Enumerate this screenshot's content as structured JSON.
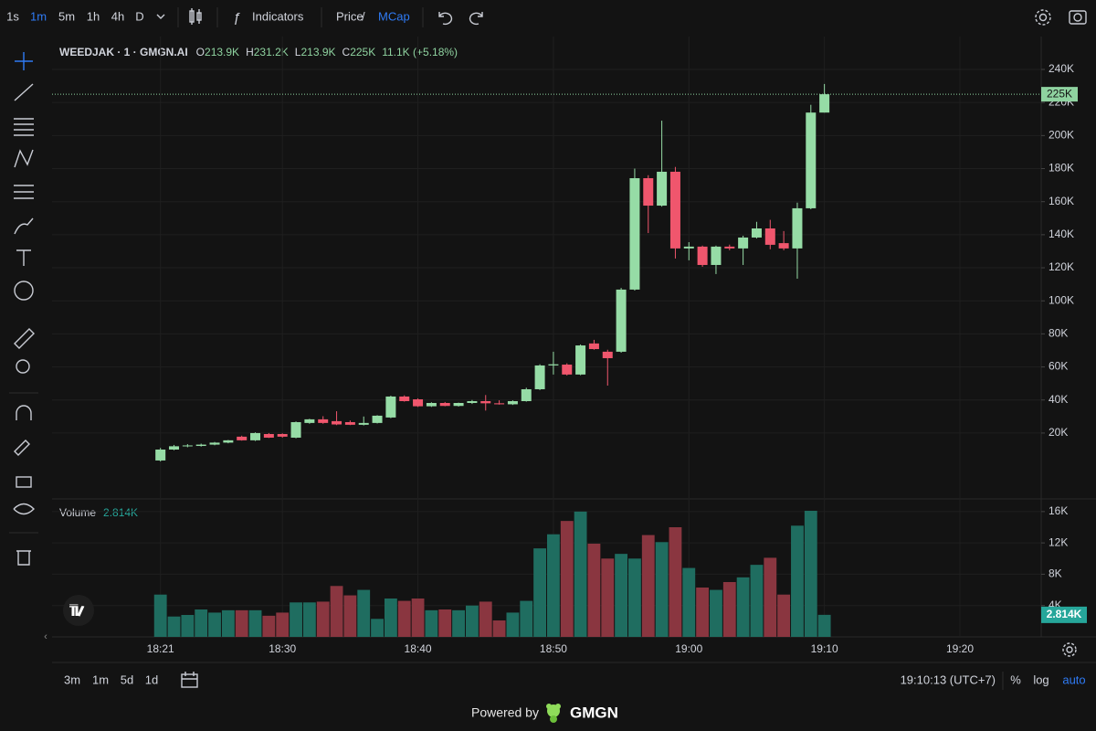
{
  "toolbar": {
    "intervals": [
      "1s",
      "1m",
      "5m",
      "1h",
      "4h",
      "D"
    ],
    "active_interval": 1,
    "indicators": "Indicators",
    "price": "Price",
    "separator": "/",
    "mcap": "MCap"
  },
  "chart_data": [
    {
      "type": "candlestick",
      "title": "WEEDJAK · 1 · GMGN.AI",
      "legend": [
        {
          "label": "O",
          "value": "213.9K"
        },
        {
          "label": "H",
          "value": "231.2K"
        },
        {
          "label": "L",
          "value": "213.9K"
        },
        {
          "label": "C",
          "value": "225K"
        }
      ],
      "change": "11.1K (+5.18%)",
      "x": [
        "18:21",
        "18:22",
        "18:23",
        "18:24",
        "18:25",
        "18:26",
        "18:27",
        "18:28",
        "18:29",
        "18:30",
        "18:31",
        "18:32",
        "18:33",
        "18:34",
        "18:35",
        "18:36",
        "18:37",
        "18:38",
        "18:39",
        "18:40",
        "18:41",
        "18:42",
        "18:43",
        "18:44",
        "18:45",
        "18:46",
        "18:47",
        "18:48",
        "18:49",
        "18:50",
        "18:51",
        "18:52",
        "18:53",
        "18:54",
        "18:55",
        "18:56",
        "18:57",
        "18:58",
        "18:59",
        "19:00",
        "19:01",
        "19:02",
        "19:03",
        "19:04",
        "19:05",
        "19:06",
        "19:07",
        "19:08",
        "19:09",
        "19:10"
      ],
      "open": [
        3.4,
        10,
        12,
        12.2,
        13,
        14.2,
        17.8,
        15.6,
        19.4,
        19.4,
        17.2,
        26.1,
        28.3,
        27.2,
        26.6,
        25,
        26.1,
        29.4,
        42.1,
        40.4,
        36.2,
        38.2,
        36.4,
        38.2,
        39.3,
        38,
        37.4,
        39.3,
        46.5,
        60.9,
        61.4,
        55.4,
        74.2,
        69.2,
        69.2,
        106.8,
        174.2,
        157.6,
        178.1,
        131.7,
        132.8,
        121.7,
        132.8,
        131.7,
        138.3,
        143.8,
        134.9,
        131.7,
        156,
        213.9
      ],
      "high": [
        11,
        12.8,
        13.3,
        13.6,
        14.6,
        15.8,
        18.4,
        20.4,
        20,
        19.8,
        27,
        28.6,
        30.2,
        33.2,
        27.6,
        30,
        30.8,
        42.6,
        42.8,
        41,
        38.6,
        38.8,
        38.4,
        40,
        43,
        39.8,
        39.8,
        47.4,
        61.6,
        69.2,
        62.2,
        73.6,
        76.4,
        70.4,
        107.8,
        180,
        176,
        209,
        181,
        135.5,
        133.4,
        133.4,
        134,
        139.4,
        147.8,
        149,
        142.2,
        159.4,
        218.6,
        231.2
      ],
      "low": [
        2.8,
        9.6,
        11.4,
        11.8,
        12.6,
        13.8,
        15.4,
        15.2,
        17,
        17.2,
        16.8,
        25.6,
        25.6,
        24.8,
        24.8,
        24.6,
        25.8,
        29,
        39,
        35.8,
        35.8,
        36.2,
        36,
        37.6,
        33.6,
        37.2,
        37,
        39,
        46,
        55.4,
        54.8,
        55,
        70.4,
        48.7,
        68.6,
        106.2,
        141,
        157,
        125.6,
        124.5,
        120.6,
        116.2,
        130.6,
        121.7,
        137.7,
        131.2,
        130.6,
        113.4,
        155.4,
        213.9
      ],
      "close": [
        10,
        12,
        12.5,
        13,
        14.2,
        15.6,
        15.6,
        20,
        17.2,
        17.8,
        26.6,
        28.3,
        26.1,
        25.2,
        25,
        26.1,
        30.5,
        42.1,
        39.3,
        36.2,
        38.2,
        36.4,
        38.2,
        39.3,
        38,
        37.4,
        39.3,
        46.5,
        60.9,
        61.6,
        55.4,
        73,
        70.8,
        65.3,
        106.8,
        174.2,
        157.6,
        178.1,
        131.7,
        132.8,
        121.7,
        132.8,
        131.7,
        138.3,
        143.8,
        133.9,
        131.7,
        156,
        213.9,
        225
      ],
      "up_color": "#96dca6",
      "down_color": "#f0566d",
      "ylim": [
        -19.3,
        259.9
      ],
      "yticks": [
        {
          "value": 20,
          "label": "20K"
        },
        {
          "value": 40,
          "label": "40K"
        },
        {
          "value": 60,
          "label": "60K"
        },
        {
          "value": 80,
          "label": "80K"
        },
        {
          "value": 100,
          "label": "100K"
        },
        {
          "value": 120,
          "label": "120K"
        },
        {
          "value": 140,
          "label": "140K"
        },
        {
          "value": 160,
          "label": "160K"
        },
        {
          "value": 180,
          "label": "180K"
        },
        {
          "value": 200,
          "label": "200K"
        },
        {
          "value": 220,
          "label": "220K"
        },
        {
          "value": 240,
          "label": "240K"
        }
      ],
      "xlim": [
        "18:13",
        "19:26"
      ],
      "xticks": [
        "18:21",
        "18:30",
        "18:40",
        "18:50",
        "19:00",
        "19:10",
        "19:20"
      ],
      "grid": true,
      "last_price": 225,
      "last_price_label": "225K"
    },
    {
      "type": "bar",
      "title": "Volume",
      "current_label": "2.814K",
      "values": [
        5.4,
        2.6,
        2.8,
        3.5,
        3.1,
        3.4,
        3.4,
        3.4,
        2.7,
        3.1,
        4.4,
        4.4,
        4.5,
        6.5,
        5.3,
        6,
        2.3,
        4.9,
        4.6,
        4.9,
        3.4,
        3.5,
        3.4,
        4,
        4.5,
        2.1,
        3.1,
        4.6,
        11.3,
        13.1,
        14.8,
        16,
        11.9,
        10,
        10.6,
        10,
        13,
        12.1,
        14,
        8.8,
        6.3,
        6,
        7,
        7.6,
        9.2,
        10.1,
        5.4,
        14.2,
        16.1,
        2.814
      ],
      "up_color": "#1f6d60",
      "down_color": "#8a3640",
      "ylim": [
        0,
        17.5
      ],
      "yticks": [
        {
          "value": 4,
          "label": "4K"
        },
        {
          "value": 8,
          "label": "8K"
        },
        {
          "value": 12,
          "label": "12K"
        },
        {
          "value": 16,
          "label": "16K"
        }
      ],
      "grid": true
    }
  ],
  "bottom_bar": {
    "ranges": [
      "3m",
      "1m",
      "5d",
      "1d"
    ],
    "clock": "19:10:13 (UTC+7)",
    "options": [
      "%",
      "log",
      "auto"
    ],
    "active_option": 2
  },
  "footer": {
    "powered_by": "Powered by",
    "brand": "GMGN"
  }
}
